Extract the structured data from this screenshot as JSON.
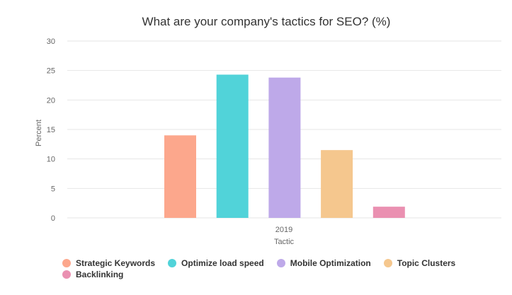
{
  "chart_data": {
    "type": "bar",
    "title": "What are your company's tactics for SEO? (%)",
    "xlabel": "Tactic",
    "ylabel": "Percent",
    "categories": [
      "2019"
    ],
    "ylim": [
      0,
      30
    ],
    "yticks": [
      0,
      5,
      10,
      15,
      20,
      25,
      30
    ],
    "grid": true,
    "legend_position": "bottom-left",
    "series": [
      {
        "name": "Strategic Keywords",
        "values": [
          14.0
        ],
        "color": "#fca78c"
      },
      {
        "name": "Optimize load speed",
        "values": [
          24.3
        ],
        "color": "#51d3d9"
      },
      {
        "name": "Mobile Optimization",
        "values": [
          23.8
        ],
        "color": "#bea9e9"
      },
      {
        "name": "Topic Clusters",
        "values": [
          11.5
        ],
        "color": "#f5c78e"
      },
      {
        "name": "Backlinking",
        "values": [
          1.9
        ],
        "color": "#ea90b1"
      }
    ]
  }
}
